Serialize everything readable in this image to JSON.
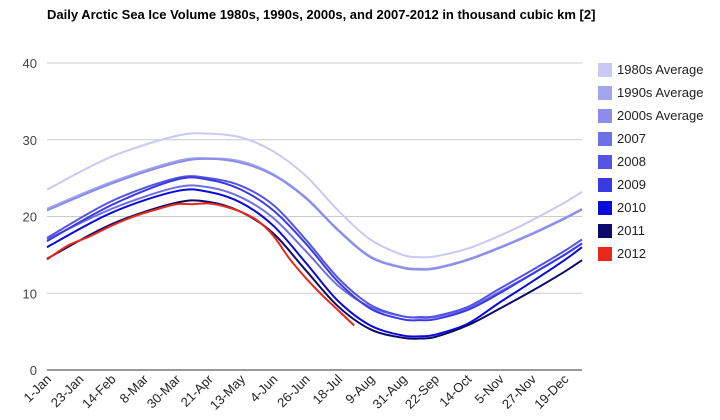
{
  "chart_data": {
    "type": "line",
    "title": "Daily Arctic Sea Ice Volume 1980s, 1990s, 2000s, and 2007-2012 in thousand cubic km [2]",
    "xlabel": "",
    "ylabel": "",
    "ylim": [
      0,
      40
    ],
    "yticks": [
      "0",
      "10",
      "20",
      "30",
      "40"
    ],
    "x_tick_labels": [
      "1-Jan",
      "23-Jan",
      "14-Feb",
      "8-Mar",
      "30-Mar",
      "21-Apr",
      "13-May",
      "4-Jun",
      "26-Jun",
      "18-Jul",
      "9-Aug",
      "31-Aug",
      "22-Sep",
      "14-Oct",
      "5-Nov",
      "27-Nov",
      "19-Dec"
    ],
    "x_tick_days": [
      1,
      23,
      45,
      67,
      89,
      111,
      133,
      155,
      177,
      199,
      221,
      243,
      265,
      287,
      309,
      331,
      353
    ],
    "xlim": [
      1,
      365
    ],
    "grid": true,
    "legend_position": "right",
    "series": [
      {
        "name": "1980s Average",
        "color": "#c9c9f3",
        "x": [
          1,
          45,
          89,
          111,
          133,
          155,
          177,
          199,
          221,
          243,
          255,
          265,
          287,
          309,
          331,
          353,
          365
        ],
        "values": [
          23.5,
          27.8,
          30.5,
          30.8,
          30.3,
          28.5,
          25.3,
          20.8,
          17.0,
          15.0,
          14.7,
          14.8,
          15.8,
          17.5,
          19.5,
          21.8,
          23.2
        ]
      },
      {
        "name": "1990s Average",
        "color": "#a5a5ef",
        "x": [
          1,
          45,
          89,
          111,
          133,
          155,
          177,
          199,
          221,
          243,
          255,
          265,
          287,
          309,
          331,
          353,
          365
        ],
        "values": [
          21.0,
          24.5,
          27.2,
          27.6,
          27.2,
          25.5,
          22.5,
          18.3,
          14.8,
          13.4,
          13.2,
          13.3,
          14.4,
          16.0,
          17.8,
          19.8,
          21.0
        ]
      },
      {
        "name": "2000s Average",
        "color": "#8c8cea",
        "x": [
          1,
          45,
          89,
          111,
          133,
          155,
          177,
          199,
          221,
          243,
          255,
          265,
          287,
          309,
          331,
          353,
          365
        ],
        "values": [
          20.8,
          24.3,
          27.0,
          27.5,
          27.0,
          25.4,
          22.4,
          18.2,
          14.7,
          13.3,
          13.1,
          13.2,
          14.3,
          15.9,
          17.7,
          19.7,
          20.9
        ]
      },
      {
        "name": "2007",
        "color": "#6f6fe6",
        "x": [
          1,
          45,
          89,
          111,
          133,
          155,
          177,
          199,
          221,
          243,
          255,
          265,
          287,
          309,
          331,
          353,
          365
        ],
        "values": [
          17.0,
          21.0,
          23.8,
          23.8,
          22.5,
          19.8,
          15.5,
          11.0,
          8.2,
          7.0,
          6.8,
          6.9,
          8.0,
          10.2,
          12.5,
          15.0,
          16.5
        ]
      },
      {
        "name": "2008",
        "color": "#5454e3",
        "x": [
          1,
          45,
          89,
          111,
          133,
          155,
          177,
          199,
          221,
          243,
          255,
          265,
          287,
          309,
          331,
          353,
          365
        ],
        "values": [
          17.2,
          22.0,
          25.0,
          25.0,
          24.0,
          21.5,
          17.0,
          12.0,
          8.5,
          7.0,
          6.9,
          7.0,
          8.2,
          10.6,
          13.0,
          15.5,
          17.0
        ]
      },
      {
        "name": "2009",
        "color": "#3a3ae3",
        "x": [
          1,
          45,
          89,
          111,
          133,
          155,
          177,
          199,
          221,
          243,
          255,
          265,
          287,
          309,
          331,
          353,
          365
        ],
        "values": [
          16.8,
          21.5,
          24.8,
          24.8,
          23.5,
          20.8,
          16.5,
          11.5,
          8.0,
          6.6,
          6.5,
          6.6,
          7.8,
          10.0,
          12.5,
          15.0,
          16.5
        ]
      },
      {
        "name": "2010",
        "color": "#0b0bd9",
        "x": [
          1,
          45,
          89,
          111,
          133,
          155,
          177,
          199,
          221,
          243,
          255,
          265,
          287,
          309,
          331,
          353,
          365
        ],
        "values": [
          16.0,
          20.5,
          23.3,
          23.2,
          21.8,
          18.8,
          14.0,
          9.0,
          5.8,
          4.5,
          4.4,
          4.6,
          6.0,
          8.8,
          11.5,
          14.3,
          16.0
        ]
      },
      {
        "name": "2011",
        "color": "#0b0b6b",
        "x": [
          1,
          45,
          89,
          111,
          133,
          155,
          177,
          199,
          221,
          243,
          255,
          265,
          287,
          309,
          331,
          353,
          365
        ],
        "values": [
          14.5,
          19.0,
          21.8,
          21.9,
          20.6,
          17.8,
          13.0,
          8.3,
          5.3,
          4.2,
          4.1,
          4.3,
          5.8,
          8.0,
          10.3,
          12.8,
          14.3
        ]
      },
      {
        "name": "2012",
        "color": "#e8281c",
        "x": [
          1,
          15,
          30,
          45,
          60,
          75,
          89,
          100,
          111,
          122,
          133,
          144,
          155,
          166,
          177,
          188,
          199,
          210
        ],
        "values": [
          14.4,
          16.2,
          17.4,
          18.8,
          20.0,
          20.9,
          21.6,
          21.6,
          21.7,
          21.3,
          20.6,
          19.5,
          17.5,
          14.5,
          12.0,
          9.8,
          7.8,
          5.8
        ]
      }
    ]
  }
}
